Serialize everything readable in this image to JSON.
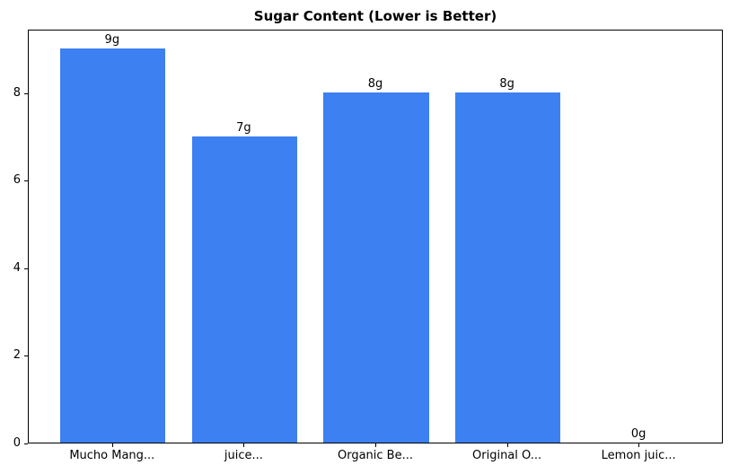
{
  "chart_data": {
    "type": "bar",
    "title": "Sugar Content (Lower is Better)",
    "categories": [
      "Mucho Mang...",
      "juice...",
      "Organic Be...",
      "Original O...",
      "Lemon juic..."
    ],
    "values": [
      9,
      7,
      8,
      8,
      0
    ],
    "value_labels": [
      "9g",
      "7g",
      "8g",
      "8g",
      "0g"
    ],
    "xlabel": "",
    "ylabel": "",
    "ylim": [
      0,
      9.45
    ],
    "yticks": [
      0,
      2,
      4,
      6,
      8
    ],
    "bar_color": "#3D80F2",
    "axis_color": "#000000",
    "grid": false,
    "legend": null
  }
}
